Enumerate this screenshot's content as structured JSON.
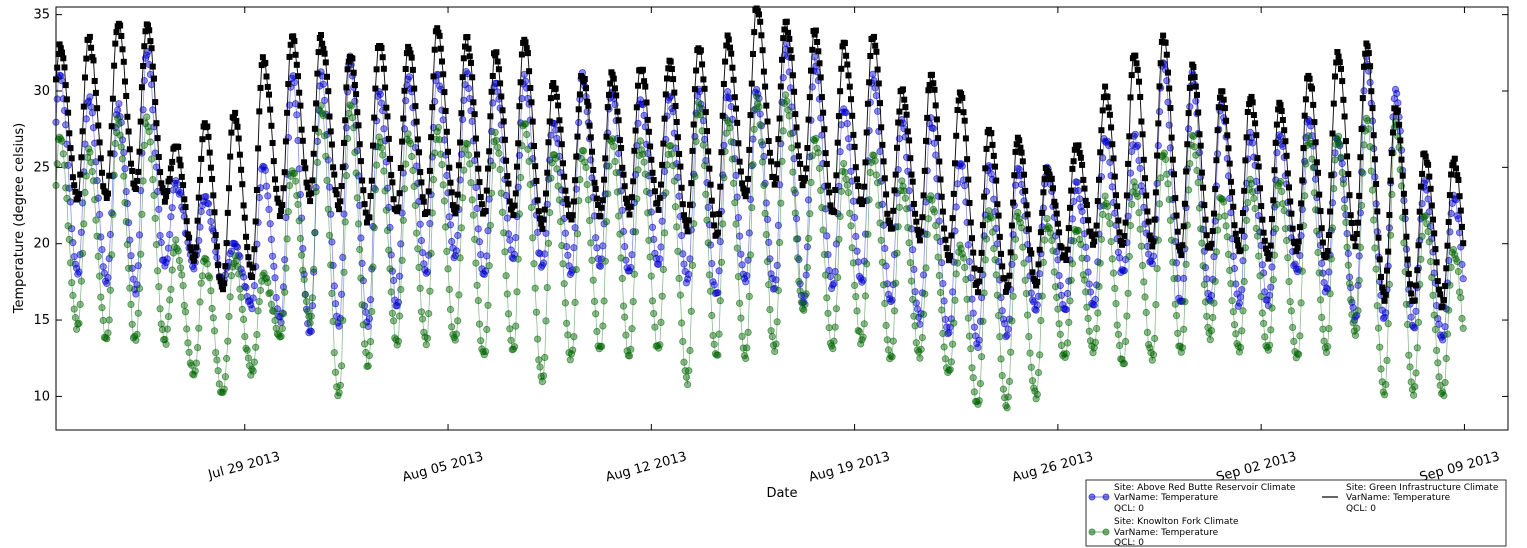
{
  "chart_data": {
    "type": "line",
    "title": "",
    "xlabel": "Date",
    "ylabel": "Temperature (degree celsius)",
    "x_range": [
      "2013-07-22T12:00",
      "2013-09-10T12:00"
    ],
    "ylim": [
      7.8,
      35.5
    ],
    "grid": false,
    "legend_position": "bottom-right, below axes",
    "xticks": [
      {
        "date": "2013-07-29",
        "label": "Jul 29 2013"
      },
      {
        "date": "2013-08-05",
        "label": "Aug 05 2013"
      },
      {
        "date": "2013-08-12",
        "label": "Aug 12 2013"
      },
      {
        "date": "2013-08-19",
        "label": "Aug 19 2013"
      },
      {
        "date": "2013-08-26",
        "label": "Aug 26 2013"
      },
      {
        "date": "2013-09-02",
        "label": "Sep 02 2013"
      },
      {
        "date": "2013-09-09",
        "label": "Sep 09 2013"
      }
    ],
    "yticks": [
      10,
      15,
      20,
      25,
      30,
      35
    ],
    "series": [
      {
        "key": "above_red_butte",
        "legend": [
          "Site: Above Red Butte Reservoir Climate",
          "VarName: Temperature",
          "QCL: 0"
        ],
        "color": "#0000cc",
        "marker": "circle",
        "daily_min": [
          19.5,
          19,
          18,
          17.5,
          17,
          18.5,
          18.5,
          17.5,
          16,
          15,
          14,
          14.5,
          14.5,
          16,
          18,
          19,
          18,
          19,
          18.5,
          18,
          18.5,
          18,
          18.5,
          17.5,
          16.5,
          17.5,
          17,
          16,
          17,
          17.5,
          16,
          15,
          14,
          13.5,
          14,
          15.5,
          15.5,
          16,
          18,
          18.5,
          16,
          16,
          16,
          16,
          18,
          17,
          15,
          15,
          14.5,
          13.5
        ],
        "daily_max": [
          31,
          31,
          29.5,
          29,
          32.5,
          24,
          23,
          20,
          25,
          31,
          31,
          32,
          30,
          31,
          31,
          31,
          30.5,
          31,
          28,
          31,
          30,
          29.5,
          29.5,
          30,
          30,
          30,
          33,
          32,
          29,
          31,
          28,
          28,
          25.5,
          25,
          25,
          25,
          24,
          27,
          27,
          32,
          31,
          29,
          27,
          27,
          28,
          27,
          32,
          30,
          24,
          23
        ]
      },
      {
        "key": "knowlton_fork",
        "legend": [
          "Site: Knowlton Fork Climate",
          "VarName: Temperature",
          "QCL: 0"
        ],
        "color": "#006600",
        "marker": "circle",
        "daily_min": [
          13.5,
          13.5,
          14.5,
          13.5,
          13.5,
          13.5,
          11.5,
          10,
          11.5,
          14,
          15,
          10,
          12,
          13.5,
          13.5,
          13.5,
          12.5,
          13,
          11,
          12.5,
          13,
          12.5,
          13,
          11,
          12.5,
          12.5,
          13,
          15.5,
          13,
          13.5,
          12.5,
          12.5,
          11.5,
          9.5,
          9.5,
          10,
          12.5,
          13,
          12,
          12.5,
          13,
          14,
          13,
          13,
          12.5,
          13,
          14,
          10,
          10,
          10
        ],
        "daily_max": [
          27,
          27,
          26,
          28,
          28,
          20,
          19,
          19,
          18,
          25,
          29,
          29,
          27,
          27,
          27.5,
          26.5,
          27,
          28,
          26,
          26,
          27,
          26.5,
          26.5,
          29,
          28,
          29.5,
          29.5,
          27,
          25,
          26,
          24,
          23,
          20,
          22,
          22,
          21.5,
          21,
          23,
          24,
          26,
          27,
          23,
          24,
          24,
          27,
          27,
          28,
          28,
          22,
          19.5
        ]
      },
      {
        "key": "green_infrastructure",
        "legend": [
          "Site: Green Infrastructure Climate",
          "VarName: Temperature",
          "QCL: 0"
        ],
        "color": "#000000",
        "marker": "square",
        "daily_min": [
          22.5,
          23,
          23,
          23,
          23.5,
          23,
          19,
          17,
          18,
          22,
          23,
          22.5,
          21.5,
          22,
          22,
          22,
          22,
          22,
          21,
          21.5,
          22,
          22,
          22.5,
          21,
          20.5,
          23,
          24,
          24,
          22,
          22.5,
          21,
          20.5,
          19,
          17,
          17,
          17.5,
          19,
          20,
          20,
          20,
          19.5,
          19.5,
          19.5,
          19,
          19.5,
          19,
          20,
          16.5,
          16,
          16
        ],
        "daily_max": [
          34.5,
          33,
          33.5,
          34.5,
          34.5,
          26.5,
          28,
          28.5,
          32,
          33.5,
          33.5,
          32.5,
          33,
          33,
          34,
          33.5,
          32.5,
          33.5,
          30.5,
          31,
          31,
          31.5,
          32,
          33,
          33.5,
          35.5,
          34.5,
          34,
          33,
          33.5,
          30,
          31,
          30,
          27.5,
          27,
          25,
          26.5,
          30,
          32.5,
          33.5,
          31.5,
          30,
          29.5,
          29,
          31,
          32.5,
          33,
          29,
          26,
          25.5
        ]
      }
    ]
  }
}
